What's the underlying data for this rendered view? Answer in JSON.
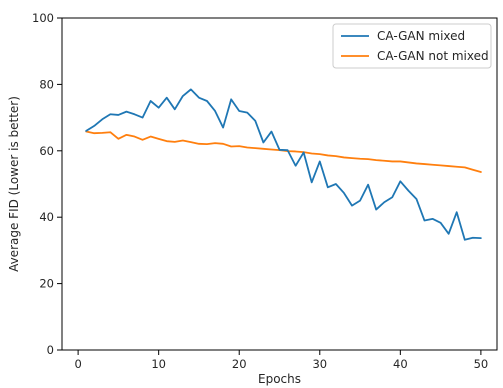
{
  "chart_data": {
    "type": "line",
    "xlabel": "Epochs",
    "ylabel": "Average FID (Lower is better)",
    "xlim": [
      -2,
      52
    ],
    "ylim": [
      0,
      100
    ],
    "xticks": [
      0,
      10,
      20,
      30,
      40,
      50
    ],
    "yticks": [
      0,
      20,
      40,
      60,
      80,
      100
    ],
    "grid": false,
    "legend_position": "top-right",
    "x": [
      1,
      2,
      3,
      4,
      5,
      6,
      7,
      8,
      9,
      10,
      11,
      12,
      13,
      14,
      15,
      16,
      17,
      18,
      19,
      20,
      21,
      22,
      23,
      24,
      25,
      26,
      27,
      28,
      29,
      30,
      31,
      32,
      33,
      34,
      35,
      36,
      37,
      38,
      39,
      40,
      41,
      42,
      43,
      44,
      45,
      46,
      47,
      48,
      49,
      50
    ],
    "series": [
      {
        "name": "CA-GAN mixed",
        "color": "#1f77b4",
        "values": [
          66,
          67.5,
          69.5,
          71,
          70.8,
          71.8,
          71,
          70,
          75,
          73,
          76,
          72.5,
          76.5,
          78.5,
          76,
          75,
          72,
          67,
          75.5,
          72,
          71.5,
          69,
          62.5,
          65.8,
          60.3,
          60.2,
          55.5,
          59.5,
          50.5,
          56.8,
          49,
          50,
          47.3,
          43.5,
          45,
          49.8,
          42.3,
          44.5,
          46,
          50.8,
          48,
          45.5,
          39,
          39.5,
          38.3,
          35,
          41.5,
          33.2,
          33.8,
          33.7
        ]
      },
      {
        "name": "CA-GAN not mixed",
        "color": "#ff7f0e",
        "values": [
          65.8,
          65.3,
          65.4,
          65.6,
          63.6,
          64.8,
          64.3,
          63.3,
          64.3,
          63.6,
          62.9,
          62.7,
          63.1,
          62.6,
          62.1,
          62.0,
          62.3,
          62.1,
          61.3,
          61.4,
          61.0,
          60.8,
          60.6,
          60.4,
          60.2,
          59.9,
          59.8,
          59.6,
          59.2,
          59.0,
          58.6,
          58.4,
          58.0,
          57.8,
          57.6,
          57.5,
          57.2,
          57.0,
          56.8,
          56.8,
          56.5,
          56.2,
          56.0,
          55.8,
          55.6,
          55.4,
          55.2,
          55.0,
          54.3,
          53.6
        ]
      }
    ]
  }
}
